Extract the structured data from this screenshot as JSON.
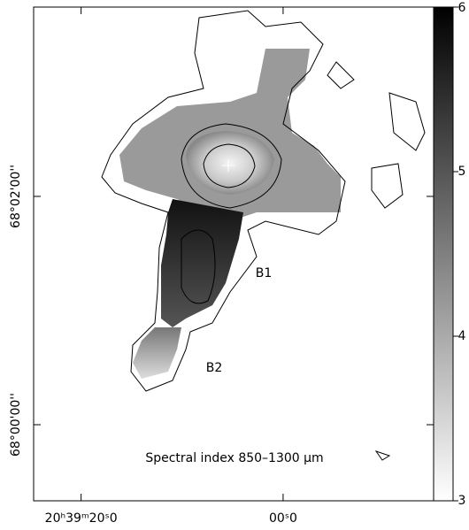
{
  "chart_data": {
    "type": "image",
    "annotations": [
      "B1",
      "B2",
      "Spectral index 850–1300 μm"
    ],
    "xlim": [
      24.7,
      -14.9
    ],
    "xticks": [
      {
        "value": 20,
        "label": "20ʰ39ᵐ20ˢ0"
      },
      {
        "value": 0,
        "label": "00ˢ0"
      }
    ],
    "ylim": [
      -40,
      219.5
    ],
    "yticks": [
      {
        "value": 0,
        "label": "68°00'00''"
      },
      {
        "value": 120,
        "label": "68°02'00''"
      }
    ],
    "colorbar": {
      "lim": [
        3,
        6
      ],
      "ticks": [
        3,
        4,
        5,
        6
      ]
    }
  }
}
